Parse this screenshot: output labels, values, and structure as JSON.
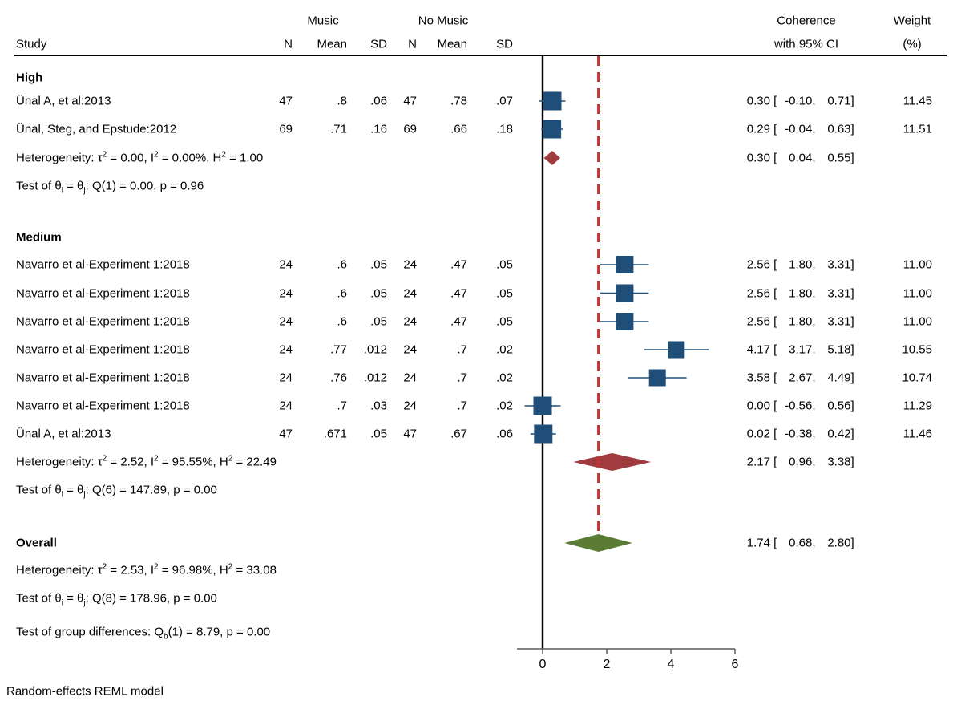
{
  "header": {
    "study": "Study",
    "music": "Music",
    "no_music": "No Music",
    "n": "N",
    "mean": "Mean",
    "sd": "SD",
    "coherence_line1": "Coherence",
    "coherence_line2": "with 95% CI",
    "weight_line1": "Weight",
    "weight_line2": "(%)"
  },
  "footer": {
    "model_note": "Random-effects REML model"
  },
  "colors": {
    "square": "#1f4e79",
    "whisker": "#1f4e79",
    "group_diamond": "#a03c40",
    "overall_diamond": "#5a7c34",
    "reference_line": "#000000",
    "overall_line": "#c5352b",
    "axis": "#595959"
  },
  "chart_data": {
    "type": "scatter",
    "subtype": "forest-plot",
    "title": "",
    "xlabel": "",
    "x_axis": {
      "ticks": [
        "0",
        "2",
        "4",
        "6"
      ],
      "range": [
        -0.8,
        6
      ]
    },
    "reference_value": 0,
    "overall_estimate_line": 1.74,
    "groups": [
      {
        "name": "High",
        "studies": [
          {
            "label": "Ünal A, et al:2013",
            "n1": "47",
            "mean1": ".8",
            "sd1": ".06",
            "n2": "47",
            "mean2": ".78",
            "sd2": ".07",
            "est": "0.30",
            "lo": "-0.10",
            "hi": "0.71",
            "weight": "11.45"
          },
          {
            "label": "Ünal, Steg, and Epstude:2012",
            "n1": "69",
            "mean1": ".71",
            "sd1": ".16",
            "n2": "69",
            "mean2": ".66",
            "sd2": ".18",
            "est": "0.29",
            "lo": "-0.04",
            "hi": "0.63",
            "weight": "11.51"
          }
        ],
        "diamond": {
          "est": "0.30",
          "lo": "0.04",
          "hi": "0.55"
        },
        "heterogeneity": "Heterogeneity: τ<sup>2</sup> = 0.00, I<sup>2</sup> = 0.00%, H<sup>2</sup> = 1.00",
        "test": "Test of θ<sub>i</sub> = θ<sub>j</sub>: Q(1) = 0.00, p = 0.96"
      },
      {
        "name": "Medium",
        "studies": [
          {
            "label": "Navarro et al-Experiment 1:2018",
            "n1": "24",
            "mean1": ".6",
            "sd1": ".05",
            "n2": "24",
            "mean2": ".47",
            "sd2": ".05",
            "est": "2.56",
            "lo": "1.80",
            "hi": "3.31",
            "weight": "11.00"
          },
          {
            "label": "Navarro et al-Experiment 1:2018",
            "n1": "24",
            "mean1": ".6",
            "sd1": ".05",
            "n2": "24",
            "mean2": ".47",
            "sd2": ".05",
            "est": "2.56",
            "lo": "1.80",
            "hi": "3.31",
            "weight": "11.00"
          },
          {
            "label": "Navarro et al-Experiment 1:2018",
            "n1": "24",
            "mean1": ".6",
            "sd1": ".05",
            "n2": "24",
            "mean2": ".47",
            "sd2": ".05",
            "est": "2.56",
            "lo": "1.80",
            "hi": "3.31",
            "weight": "11.00"
          },
          {
            "label": "Navarro et al-Experiment 1:2018",
            "n1": "24",
            "mean1": ".77",
            "sd1": ".012",
            "n2": "24",
            "mean2": ".7",
            "sd2": ".02",
            "est": "4.17",
            "lo": "3.17",
            "hi": "5.18",
            "weight": "10.55"
          },
          {
            "label": "Navarro et al-Experiment 1:2018",
            "n1": "24",
            "mean1": ".76",
            "sd1": ".012",
            "n2": "24",
            "mean2": ".7",
            "sd2": ".02",
            "est": "3.58",
            "lo": "2.67",
            "hi": "4.49",
            "weight": "10.74"
          },
          {
            "label": "Navarro et al-Experiment 1:2018",
            "n1": "24",
            "mean1": ".7",
            "sd1": ".03",
            "n2": "24",
            "mean2": ".7",
            "sd2": ".02",
            "est": "0.00",
            "lo": "-0.56",
            "hi": "0.56",
            "weight": "11.29"
          },
          {
            "label": "Ünal A, et al:2013",
            "n1": "47",
            "mean1": ".671",
            "sd1": ".05",
            "n2": "47",
            "mean2": ".67",
            "sd2": ".06",
            "est": "0.02",
            "lo": "-0.38",
            "hi": "0.42",
            "weight": "11.46"
          }
        ],
        "diamond": {
          "est": "2.17",
          "lo": "0.96",
          "hi": "3.38"
        },
        "heterogeneity": "Heterogeneity: τ<sup>2</sup> = 2.52, I<sup>2</sup> = 95.55%, H<sup>2</sup> = 22.49",
        "test": "Test of θ<sub>i</sub> = θ<sub>j</sub>: Q(6) = 147.89, p = 0.00"
      }
    ],
    "overall": {
      "name": "Overall",
      "diamond": {
        "est": "1.74",
        "lo": "0.68",
        "hi": "2.80"
      },
      "heterogeneity": "Heterogeneity: τ<sup>2</sup> = 2.53, I<sup>2</sup> = 96.98%, H<sup>2</sup> = 33.08",
      "test": "Test of θ<sub>i</sub> = θ<sub>j</sub>: Q(8) = 178.96, p = 0.00"
    },
    "group_difference_test": "Test of group differences: Q<sub>b</sub>(1) = 8.79, p = 0.00"
  }
}
